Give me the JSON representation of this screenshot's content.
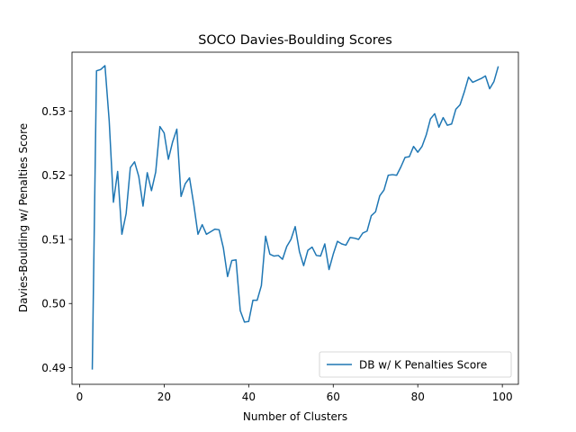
{
  "chart_data": {
    "type": "line",
    "title": "SOCO Davies-Boulding Scores",
    "xlabel": "Number of Clusters",
    "ylabel": "Davies-Boulding w/ Penalties Score",
    "xlim": [
      -1.8,
      103.8
    ],
    "ylim": [
      0.4874,
      0.5392
    ],
    "xticks": [
      0,
      20,
      40,
      60,
      80,
      100
    ],
    "xtick_labels": [
      "0",
      "20",
      "40",
      "60",
      "80",
      "100"
    ],
    "yticks": [
      0.49,
      0.5,
      0.51,
      0.52,
      0.53
    ],
    "ytick_labels": [
      "0.49",
      "0.50",
      "0.51",
      "0.52",
      "0.53"
    ],
    "grid": false,
    "legend_position": "lower-right",
    "series": [
      {
        "name": "DB w/ K Penalties Score",
        "color": "#1f77b4",
        "x": [
          3,
          4,
          5,
          6,
          7,
          8,
          9,
          10,
          11,
          12,
          13,
          14,
          15,
          16,
          17,
          18,
          19,
          20,
          21,
          22,
          23,
          24,
          25,
          26,
          27,
          28,
          29,
          30,
          31,
          32,
          33,
          34,
          35,
          36,
          37,
          38,
          39,
          40,
          41,
          42,
          43,
          44,
          45,
          46,
          47,
          48,
          49,
          50,
          51,
          52,
          53,
          54,
          55,
          56,
          57,
          58,
          59,
          60,
          61,
          62,
          63,
          64,
          65,
          66,
          67,
          68,
          69,
          70,
          71,
          72,
          73,
          74,
          75,
          76,
          77,
          78,
          79,
          80,
          81,
          82,
          83,
          84,
          85,
          86,
          87,
          88,
          89,
          90,
          91,
          92,
          93,
          94,
          95,
          96,
          97,
          98,
          99
        ],
        "values": [
          0.4898,
          0.5363,
          0.5365,
          0.5371,
          0.5285,
          0.5158,
          0.5206,
          0.5108,
          0.514,
          0.5212,
          0.5221,
          0.5198,
          0.5152,
          0.5204,
          0.5176,
          0.5205,
          0.5276,
          0.5266,
          0.5225,
          0.5252,
          0.5272,
          0.5167,
          0.5187,
          0.5196,
          0.5155,
          0.5108,
          0.5123,
          0.5108,
          0.5112,
          0.5116,
          0.5115,
          0.5087,
          0.5042,
          0.5067,
          0.5068,
          0.4989,
          0.4971,
          0.4972,
          0.5005,
          0.5005,
          0.5028,
          0.5105,
          0.5077,
          0.5074,
          0.5075,
          0.5069,
          0.5089,
          0.51,
          0.512,
          0.5081,
          0.5059,
          0.5083,
          0.5088,
          0.5075,
          0.5074,
          0.5093,
          0.5053,
          0.5077,
          0.5097,
          0.5093,
          0.5091,
          0.5103,
          0.5102,
          0.51,
          0.511,
          0.5113,
          0.5137,
          0.5143,
          0.5168,
          0.5177,
          0.52,
          0.5201,
          0.52,
          0.5213,
          0.5228,
          0.5229,
          0.5245,
          0.5236,
          0.5245,
          0.5263,
          0.5288,
          0.5296,
          0.5275,
          0.529,
          0.5278,
          0.528,
          0.5303,
          0.531,
          0.533,
          0.5353,
          0.5345,
          0.5348,
          0.5351,
          0.5355,
          0.5335,
          0.5346,
          0.5369
        ]
      }
    ]
  }
}
